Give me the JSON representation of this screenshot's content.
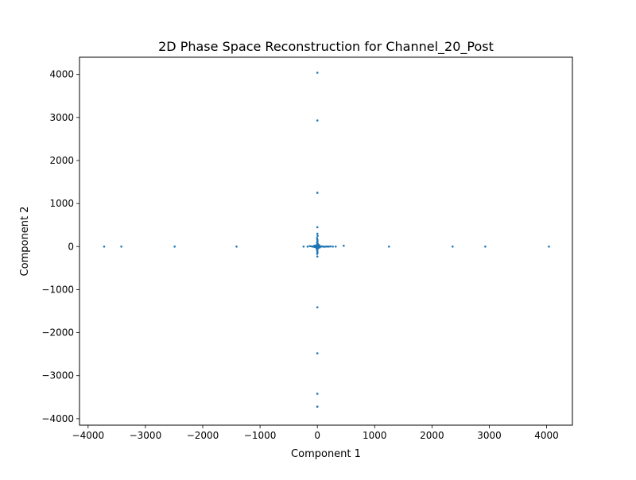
{
  "chart_data": {
    "type": "scatter",
    "title": "2D Phase Space Reconstruction for Channel_20_Post",
    "xlabel": "Component 1",
    "ylabel": "Component 2",
    "xlim": [
      -4150,
      4450
    ],
    "ylim": [
      -4150,
      4400
    ],
    "xticks": [
      -4000,
      -3000,
      -2000,
      -1000,
      0,
      1000,
      2000,
      3000,
      4000
    ],
    "yticks": [
      -4000,
      -3000,
      -2000,
      -1000,
      0,
      1000,
      2000,
      3000,
      4000
    ],
    "xtick_labels": [
      "−4000",
      "−3000",
      "−2000",
      "−1000",
      "0",
      "1000",
      "2000",
      "3000",
      "4000"
    ],
    "ytick_labels": [
      "−4000",
      "−3000",
      "−2000",
      "−1000",
      "0",
      "1000",
      "2000",
      "3000",
      "4000"
    ],
    "grid": false,
    "legend": "none",
    "marker_color": "#1f77b4",
    "points": [
      [
        -3720,
        0
      ],
      [
        -3420,
        0
      ],
      [
        -2490,
        0
      ],
      [
        -1410,
        0
      ],
      [
        1250,
        0
      ],
      [
        2360,
        0
      ],
      [
        2930,
        0
      ],
      [
        4040,
        0
      ],
      [
        0,
        4040
      ],
      [
        0,
        2930
      ],
      [
        0,
        1250
      ],
      [
        0,
        -1410
      ],
      [
        0,
        -2480
      ],
      [
        0,
        -3420
      ],
      [
        0,
        -3720
      ],
      [
        -240,
        0
      ],
      [
        -170,
        0
      ],
      [
        -130,
        10
      ],
      [
        -100,
        5
      ],
      [
        -80,
        0
      ],
      [
        -60,
        12
      ],
      [
        -50,
        -8
      ],
      [
        -40,
        5
      ],
      [
        -30,
        -3
      ],
      [
        -20,
        15
      ],
      [
        -10,
        -10
      ],
      [
        10,
        0
      ],
      [
        20,
        8
      ],
      [
        30,
        -5
      ],
      [
        45,
        3
      ],
      [
        60,
        0
      ],
      [
        80,
        4
      ],
      [
        100,
        0
      ],
      [
        125,
        -3
      ],
      [
        150,
        0
      ],
      [
        175,
        2
      ],
      [
        200,
        0
      ],
      [
        230,
        4
      ],
      [
        270,
        0
      ],
      [
        320,
        0
      ],
      [
        460,
        20
      ],
      [
        0,
        450
      ],
      [
        0,
        300
      ],
      [
        5,
        250
      ],
      [
        -5,
        200
      ],
      [
        0,
        160
      ],
      [
        3,
        130
      ],
      [
        -3,
        100
      ],
      [
        0,
        80
      ],
      [
        5,
        60
      ],
      [
        -4,
        45
      ],
      [
        0,
        30
      ],
      [
        6,
        20
      ],
      [
        -6,
        -20
      ],
      [
        0,
        -40
      ],
      [
        4,
        -60
      ],
      [
        -4,
        -80
      ],
      [
        0,
        -110
      ],
      [
        2,
        -140
      ],
      [
        -2,
        -170
      ],
      [
        0,
        -230
      ],
      [
        -30,
        25
      ],
      [
        25,
        -25
      ],
      [
        -15,
        -35
      ],
      [
        35,
        30
      ],
      [
        15,
        40
      ],
      [
        -25,
        -15
      ],
      [
        10,
        55
      ],
      [
        -8,
        -50
      ],
      [
        40,
        -20
      ],
      [
        -45,
        20
      ]
    ]
  }
}
